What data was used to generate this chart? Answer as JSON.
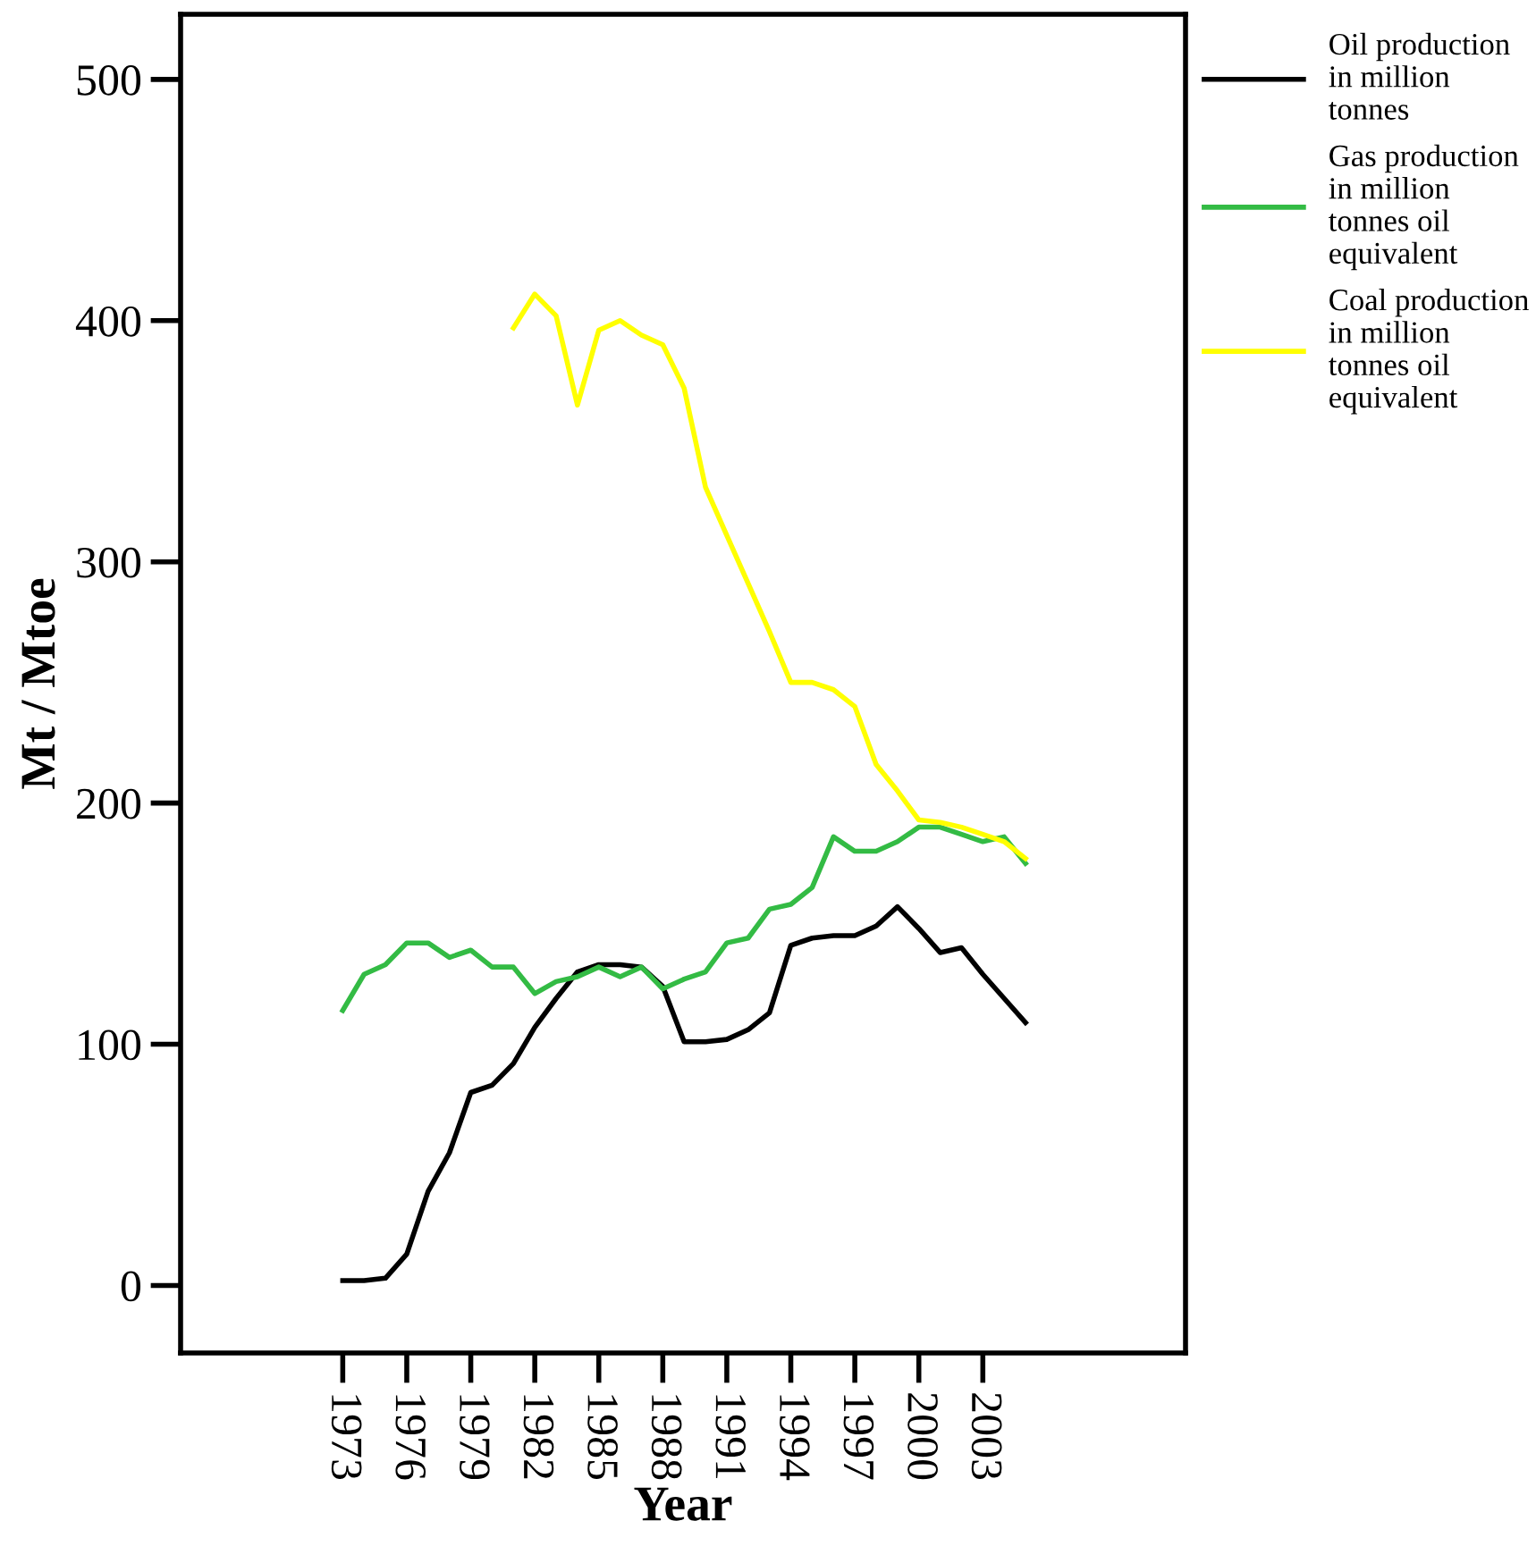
{
  "chart_data": {
    "type": "line",
    "xlabel": "Year",
    "ylabel": "Mt / Mtoe",
    "xlim": [
      1965.4,
      2012.5
    ],
    "ylim": [
      -28,
      527
    ],
    "xticks": [
      1973,
      1976,
      1979,
      1982,
      1985,
      1988,
      1991,
      1994,
      1997,
      2000,
      2003
    ],
    "yticks": [
      0,
      100,
      200,
      300,
      400,
      500
    ],
    "grid": false,
    "legend": "top right",
    "line_style": "solid",
    "marker": "none",
    "series": [
      {
        "name": "Oil production in million tonnes",
        "color": "#000000",
        "x": [
          1973,
          1974,
          1975,
          1976,
          1977,
          1978,
          1979,
          1980,
          1981,
          1982,
          1983,
          1984,
          1985,
          1986,
          1987,
          1988,
          1989,
          1990,
          1991,
          1992,
          1993,
          1994,
          1995,
          1996,
          1997,
          1998,
          1999,
          2000,
          2001,
          2002,
          2003,
          2004,
          2005
        ],
        "values": [
          2,
          2,
          3,
          13,
          39,
          55,
          80,
          83,
          92,
          107,
          119,
          130,
          133,
          133,
          132,
          124,
          101,
          101,
          102,
          106,
          113,
          141,
          144,
          145,
          145,
          149,
          157,
          148,
          138,
          140,
          129,
          119,
          109
        ]
      },
      {
        "name": "Gas production in million tonnes oil equivalent",
        "color": "#33bb44",
        "x": [
          1973,
          1974,
          1975,
          1976,
          1977,
          1978,
          1979,
          1980,
          1981,
          1982,
          1983,
          1984,
          1985,
          1986,
          1987,
          1988,
          1989,
          1990,
          1991,
          1992,
          1993,
          1994,
          1995,
          1996,
          1997,
          1998,
          1999,
          2000,
          2001,
          2002,
          2003,
          2004,
          2005
        ],
        "values": [
          114,
          129,
          133,
          142,
          142,
          136,
          139,
          132,
          132,
          121,
          126,
          128,
          132,
          128,
          132,
          123,
          127,
          130,
          142,
          144,
          156,
          158,
          165,
          186,
          180,
          180,
          184,
          190,
          190,
          187,
          184,
          186,
          175
        ]
      },
      {
        "name": "Coal production in million tonnes oil equivalent",
        "color": "#ffff00",
        "x": [
          1981,
          1982,
          1983,
          1984,
          1985,
          1986,
          1987,
          1988,
          1989,
          1990,
          1991,
          1992,
          1993,
          1994,
          1995,
          1996,
          1997,
          1998,
          1999,
          2000,
          2001,
          2002,
          2003,
          2004,
          2005
        ],
        "values": [
          397,
          411,
          402,
          365,
          396,
          400,
          394,
          390,
          372,
          331,
          311,
          291,
          271,
          250,
          250,
          247,
          240,
          216,
          205,
          193,
          192,
          190,
          187,
          184,
          177
        ]
      }
    ]
  }
}
